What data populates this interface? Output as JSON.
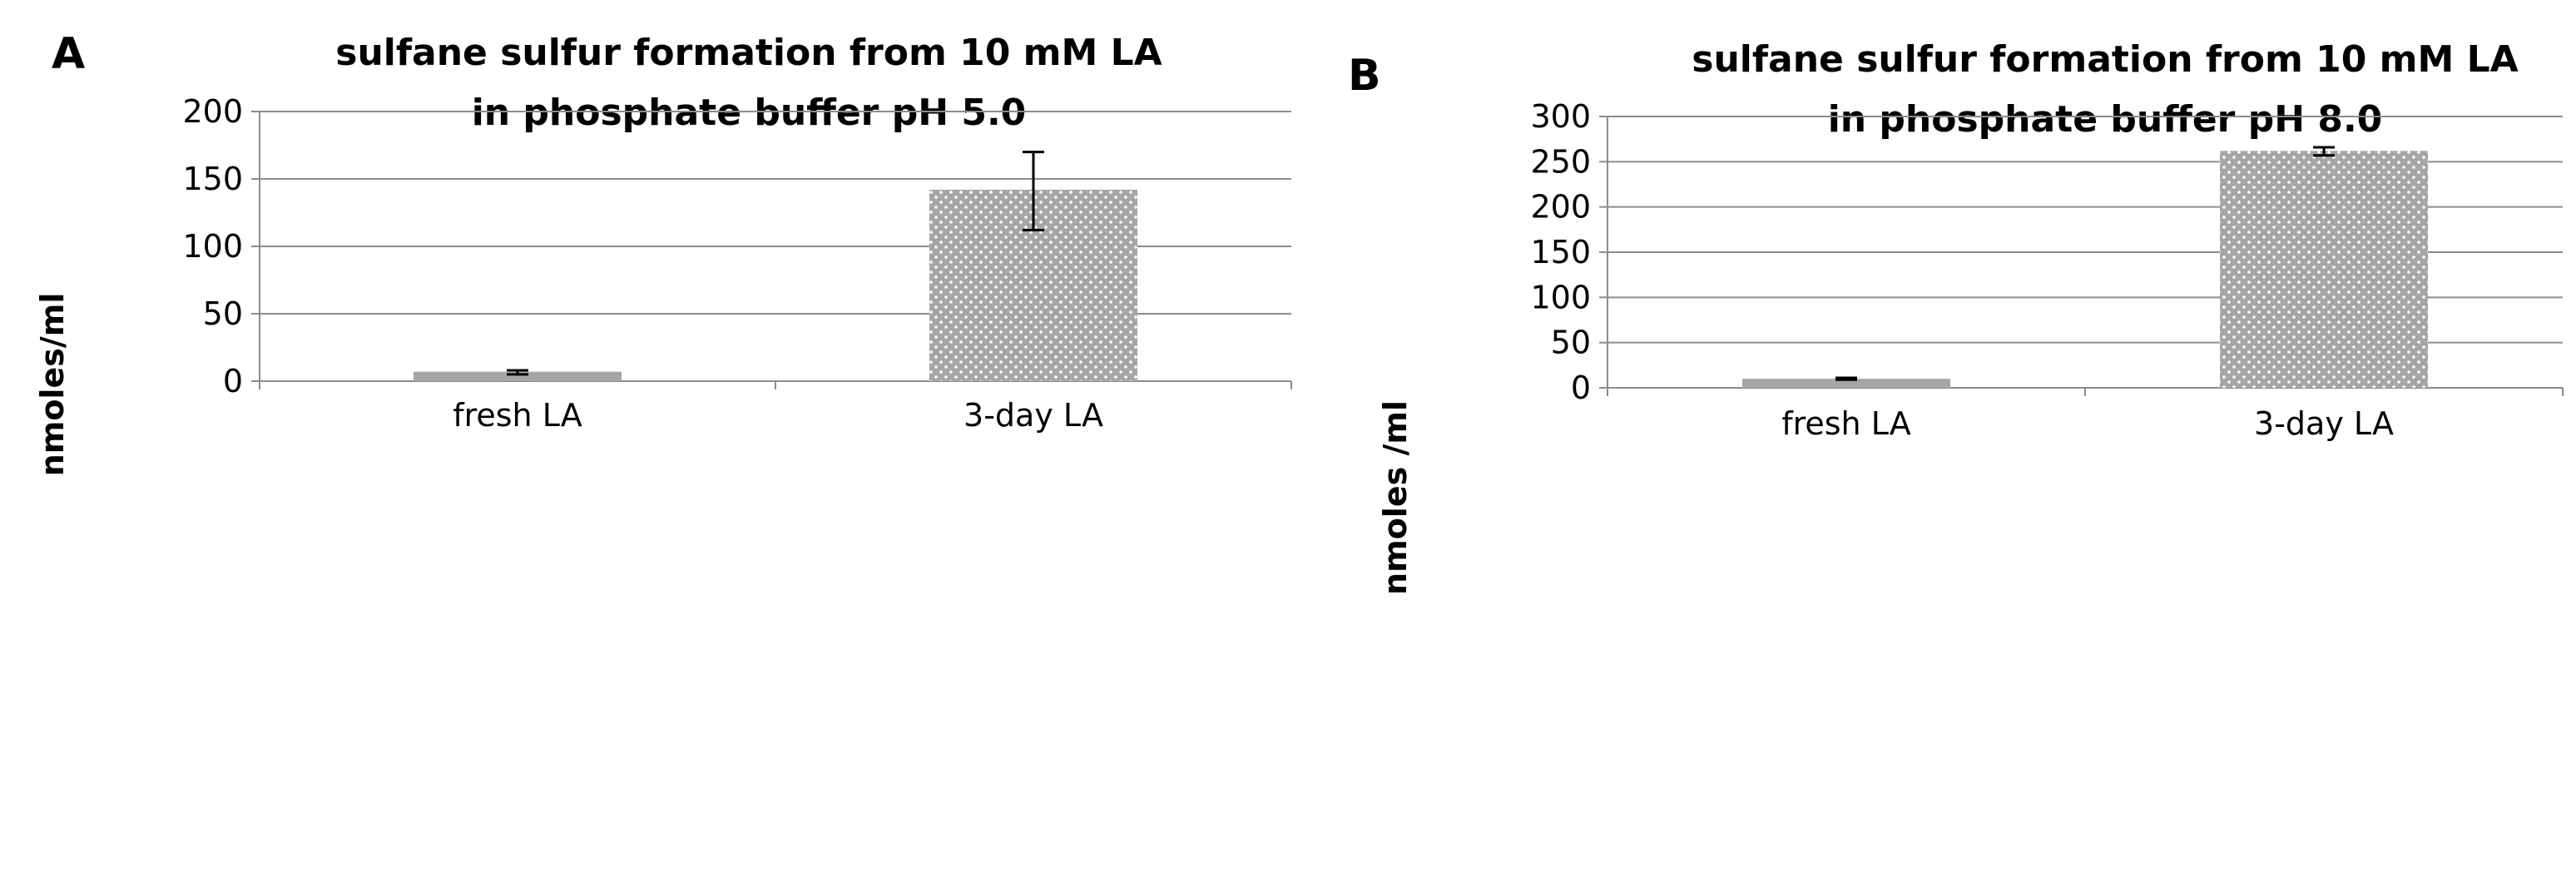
{
  "chart_data": [
    {
      "panel": "A",
      "type": "bar",
      "title_lines": [
        "sulfane sulfur formation from 10 mM LA",
        "in phosphate buffer pH 5.0"
      ],
      "title": "sulfane sulfur formation from 10 mM LA in phosphate buffer pH 5.0",
      "xlabel": "",
      "ylabel": "nmoles/ml",
      "categories": [
        "fresh LA",
        "3-day LA"
      ],
      "values": [
        7,
        142
      ],
      "error_low": [
        5,
        112
      ],
      "error_high": [
        8,
        170
      ],
      "ylim": [
        0,
        200
      ],
      "yticks": [
        0,
        50,
        100,
        150,
        200
      ],
      "grid": true
    },
    {
      "panel": "B",
      "type": "bar",
      "title_lines": [
        "sulfane sulfur formation from 10 mM LA",
        "in phosphate buffer pH 8.0"
      ],
      "title": "sulfane sulfur formation from 10 mM LA in phosphate buffer pH 8.0",
      "xlabel": "",
      "ylabel": "nmoles /ml",
      "categories": [
        "fresh LA",
        "3-day LA"
      ],
      "values": [
        10,
        262
      ],
      "error_low": [
        9,
        257
      ],
      "error_high": [
        11,
        266
      ],
      "ylim": [
        0,
        300
      ],
      "yticks": [
        0,
        50,
        100,
        150,
        200,
        250,
        300
      ],
      "grid": true
    }
  ],
  "colors": {
    "fresh_bar": "#a6a6a6",
    "dotted_bar": "#a6a6a6",
    "dot": "#ffffff",
    "grid": "#8c8c8c",
    "error_bar": "#000000"
  }
}
